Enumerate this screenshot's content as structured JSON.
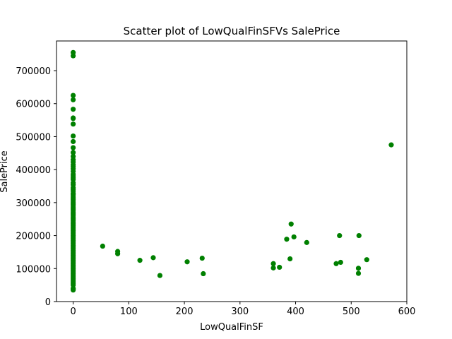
{
  "chart_data": {
    "type": "scatter",
    "title": "Scatter plot of LowQualFinSFVs SalePrice",
    "xlabel": "LowQualFinSF",
    "ylabel": "SalePrice",
    "xlim": [
      -30,
      600
    ],
    "ylim": [
      0,
      790000
    ],
    "xticks": [
      0,
      100,
      200,
      300,
      400,
      500,
      600
    ],
    "yticks": [
      0,
      100000,
      200000,
      300000,
      400000,
      500000,
      600000,
      700000
    ],
    "grid": false,
    "marker_color": "#008000",
    "series": [
      {
        "points": [
          [
            0,
            755000
          ],
          [
            0,
            745000
          ],
          [
            0,
            625000
          ],
          [
            0,
            611657
          ],
          [
            0,
            582933
          ],
          [
            0,
            556581
          ],
          [
            0,
            555000
          ],
          [
            0,
            538000
          ],
          [
            0,
            501837
          ],
          [
            0,
            485000
          ],
          [
            0,
            466500
          ],
          [
            0,
            451950
          ],
          [
            0,
            440000
          ],
          [
            0,
            430000
          ],
          [
            0,
            423000
          ],
          [
            0,
            415298
          ],
          [
            0,
            410000
          ],
          [
            0,
            402861
          ],
          [
            0,
            395000
          ],
          [
            0,
            386250
          ],
          [
            0,
            381000
          ],
          [
            0,
            375000
          ],
          [
            0,
            369900
          ],
          [
            0,
            360000
          ],
          [
            0,
            354000
          ],
          [
            0,
            345000
          ],
          [
            0,
            340000
          ],
          [
            0,
            335000
          ],
          [
            0,
            328000
          ],
          [
            0,
            325000
          ],
          [
            0,
            320000
          ],
          [
            0,
            315000
          ],
          [
            0,
            310000
          ],
          [
            0,
            305000
          ],
          [
            0,
            300000
          ],
          [
            0,
            295000
          ],
          [
            0,
            290000
          ],
          [
            0,
            285000
          ],
          [
            0,
            280000
          ],
          [
            0,
            275000
          ],
          [
            0,
            270000
          ],
          [
            0,
            265000
          ],
          [
            0,
            260000
          ],
          [
            0,
            255000
          ],
          [
            0,
            250000
          ],
          [
            0,
            245000
          ],
          [
            0,
            240000
          ],
          [
            0,
            235000
          ],
          [
            0,
            230000
          ],
          [
            0,
            225000
          ],
          [
            0,
            220000
          ],
          [
            0,
            215000
          ],
          [
            0,
            210000
          ],
          [
            0,
            205000
          ],
          [
            0,
            200000
          ],
          [
            0,
            195000
          ],
          [
            0,
            190000
          ],
          [
            0,
            185000
          ],
          [
            0,
            180000
          ],
          [
            0,
            175000
          ],
          [
            0,
            170000
          ],
          [
            0,
            165000
          ],
          [
            0,
            160000
          ],
          [
            0,
            155000
          ],
          [
            0,
            150000
          ],
          [
            0,
            145000
          ],
          [
            0,
            140000
          ],
          [
            0,
            135000
          ],
          [
            0,
            130000
          ],
          [
            0,
            125000
          ],
          [
            0,
            120000
          ],
          [
            0,
            115000
          ],
          [
            0,
            110000
          ],
          [
            0,
            105000
          ],
          [
            0,
            100000
          ],
          [
            0,
            95000
          ],
          [
            0,
            90000
          ],
          [
            0,
            85000
          ],
          [
            0,
            80000
          ],
          [
            0,
            75000
          ],
          [
            0,
            70000
          ],
          [
            0,
            65000
          ],
          [
            0,
            60000
          ],
          [
            0,
            55000
          ],
          [
            0,
            50000
          ],
          [
            0,
            40000
          ],
          [
            0,
            37900
          ],
          [
            0,
            34900
          ],
          [
            53,
            168000
          ],
          [
            80,
            152000
          ],
          [
            80,
            145000
          ],
          [
            120,
            125000
          ],
          [
            144,
            133000
          ],
          [
            156,
            79000
          ],
          [
            205,
            120500
          ],
          [
            232,
            131500
          ],
          [
            234,
            84500
          ],
          [
            360,
            115000
          ],
          [
            360,
            102000
          ],
          [
            371,
            104000
          ],
          [
            384,
            189000
          ],
          [
            390,
            129500
          ],
          [
            392,
            235000
          ],
          [
            397,
            196000
          ],
          [
            420,
            179000
          ],
          [
            473,
            115000
          ],
          [
            479,
            200000
          ],
          [
            481,
            119000
          ],
          [
            513,
            101000
          ],
          [
            513,
            85500
          ],
          [
            514,
            200000
          ],
          [
            528,
            127000
          ],
          [
            572,
            475000
          ]
        ]
      }
    ]
  }
}
